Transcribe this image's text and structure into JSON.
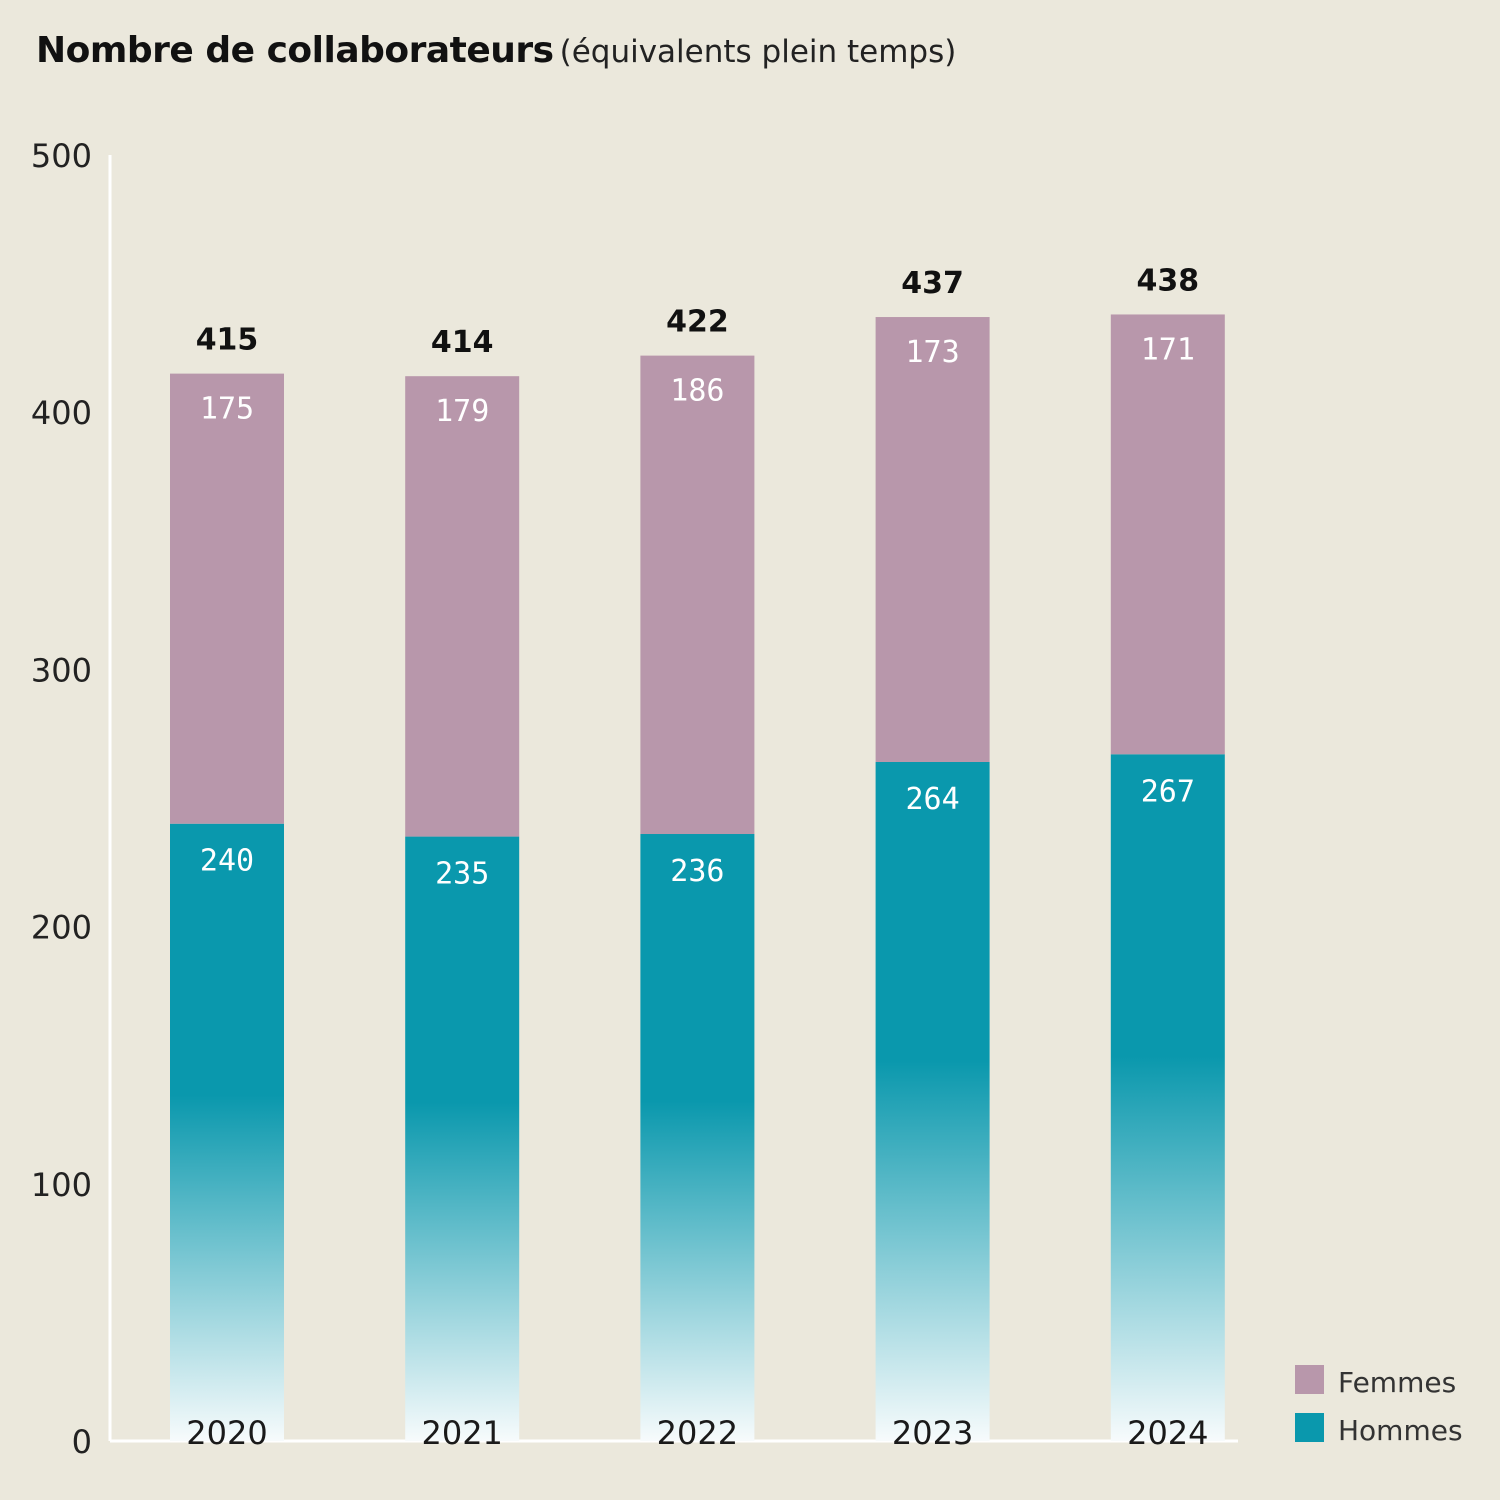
{
  "title": "Nombre de collaborateurs",
  "subtitle": "(équivalents plein temps)",
  "colors": {
    "background": "#ebe8dc",
    "femmes": "#b897ab",
    "hommes": "#0a98ad",
    "axis": "#ffffff"
  },
  "chart_data": {
    "type": "bar",
    "stacked": true,
    "title": "Nombre de collaborateurs",
    "subtitle": "(équivalents plein temps)",
    "categories": [
      "2020",
      "2021",
      "2022",
      "2023",
      "2024"
    ],
    "series": [
      {
        "name": "Hommes",
        "values": [
          240,
          235,
          236,
          264,
          267
        ],
        "color": "#0a98ad"
      },
      {
        "name": "Femmes",
        "values": [
          175,
          179,
          186,
          173,
          171
        ],
        "color": "#b897ab"
      }
    ],
    "totals": [
      "415",
      "414",
      "422",
      "437",
      "438"
    ],
    "segment_labels": {
      "Hommes": [
        "240",
        "235",
        "236",
        "264",
        "267"
      ],
      "Femmes": [
        "175",
        "179",
        "186",
        "173",
        "171"
      ]
    },
    "ylim": [
      0,
      500
    ],
    "yticks": [
      "0",
      "100",
      "200",
      "300",
      "400",
      "500"
    ],
    "grid": false,
    "legend": {
      "position": "bottom-right",
      "entries": [
        "Femmes",
        "Hommes"
      ]
    }
  }
}
